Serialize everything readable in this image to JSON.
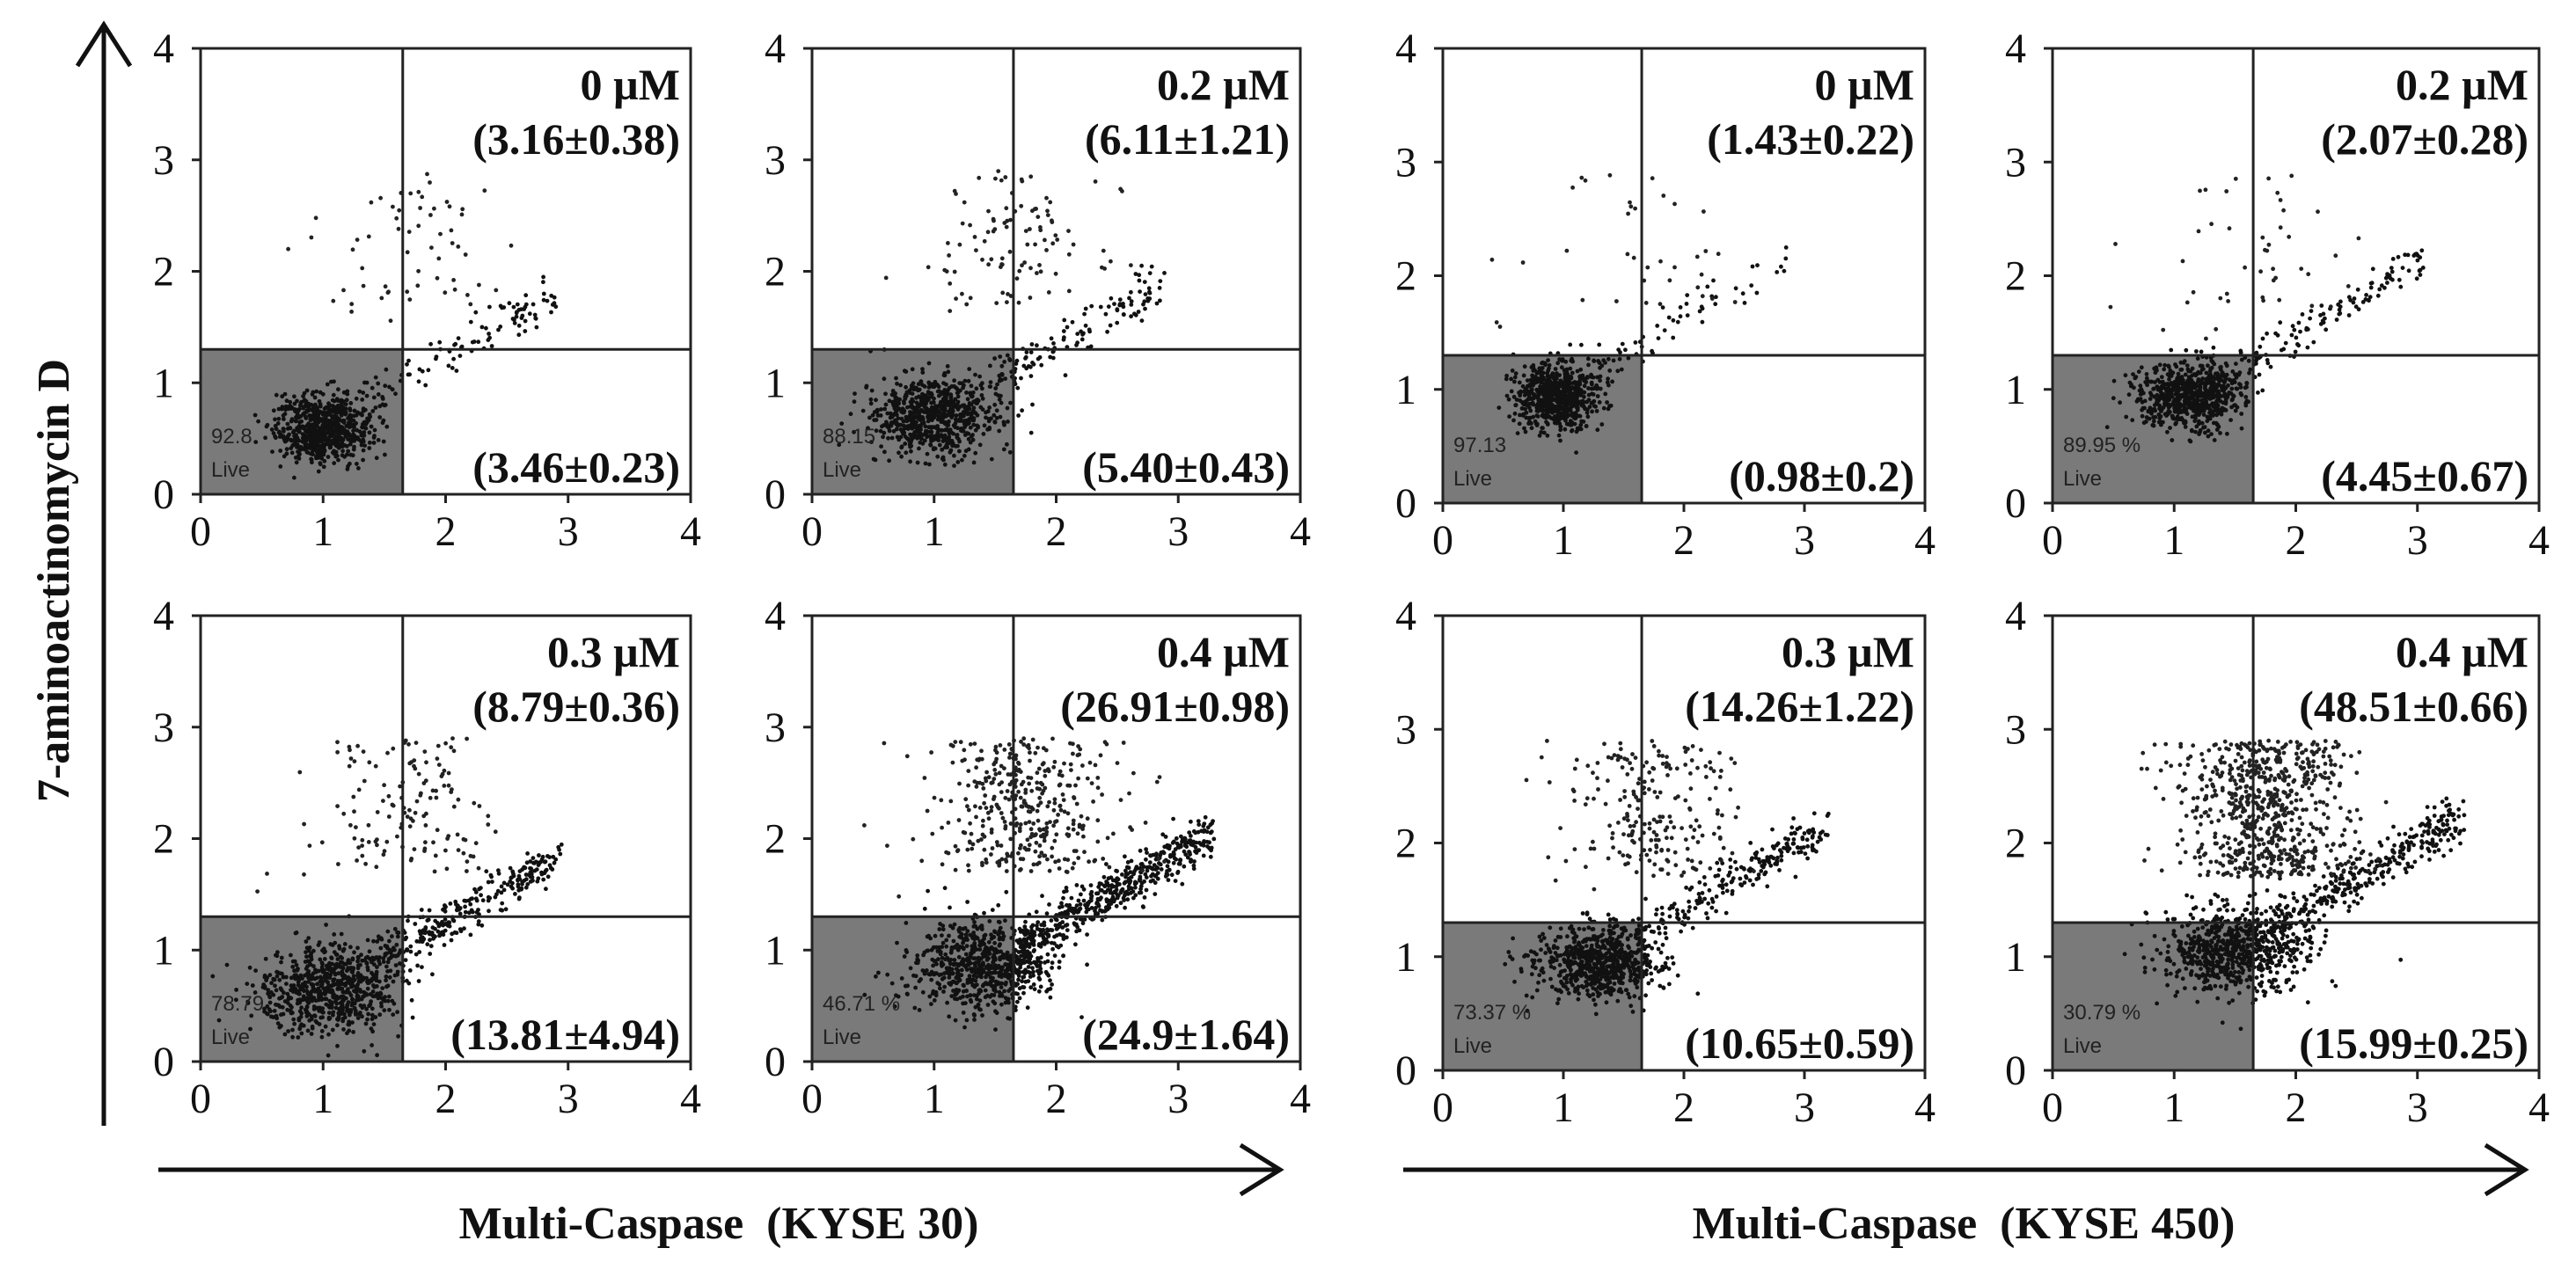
{
  "figure": {
    "y_axis_title": "7-aminoactinomycin D",
    "groups": [
      {
        "x_axis_title": "Multi-Caspase  (KYSE 30)"
      },
      {
        "x_axis_title": "Multi-Caspase  (KYSE 450)"
      }
    ]
  },
  "chart_data": [
    {
      "type": "scatter",
      "group": "Multi-Caspase  (KYSE 30)",
      "concentration": "0 µM",
      "late_apoptotic_label": "(3.16±0.38)",
      "early_apoptotic_label": "(3.46±0.23)",
      "live_percent_label": "92.8",
      "live_label": "Live",
      "xlim": [
        0,
        4
      ],
      "ylim": [
        0,
        4
      ],
      "xticks": [
        "0",
        "1",
        "2",
        "3",
        "4"
      ],
      "yticks": [
        "0",
        "1",
        "2",
        "3",
        "4"
      ],
      "gate": {
        "x": 1.65,
        "y": 1.3
      },
      "main_cluster": {
        "cx": 1.0,
        "cy": 0.6,
        "sx": 0.2,
        "sy": 0.15
      }
    },
    {
      "type": "scatter",
      "group": "Multi-Caspase  (KYSE 30)",
      "concentration": "0.2 µM",
      "late_apoptotic_label": "(6.11±1.21)",
      "early_apoptotic_label": "(5.40±0.43)",
      "live_percent_label": "88.15",
      "live_label": "Live",
      "xlim": [
        0,
        4
      ],
      "ylim": [
        0,
        4
      ],
      "xticks": [
        "0",
        "1",
        "2",
        "3",
        "4"
      ],
      "yticks": [
        "0",
        "1",
        "2",
        "3",
        "4"
      ],
      "gate": {
        "x": 1.65,
        "y": 1.3
      },
      "main_cluster": {
        "cx": 1.0,
        "cy": 0.7,
        "sx": 0.25,
        "sy": 0.18
      }
    },
    {
      "type": "scatter",
      "group": "Multi-Caspase  (KYSE 450)",
      "concentration": "0 µM",
      "late_apoptotic_label": "(1.43±0.22)",
      "early_apoptotic_label": "(0.98±0.2)",
      "live_percent_label": "97.13",
      "live_label": "Live",
      "xlim": [
        0,
        4
      ],
      "ylim": [
        0,
        4
      ],
      "xticks": [
        "0",
        "1",
        "2",
        "3",
        "4"
      ],
      "yticks": [
        "0",
        "1",
        "2",
        "3",
        "4"
      ],
      "gate": {
        "x": 1.65,
        "y": 1.3
      },
      "main_cluster": {
        "cx": 0.95,
        "cy": 0.95,
        "sx": 0.17,
        "sy": 0.15
      }
    },
    {
      "type": "scatter",
      "group": "Multi-Caspase  (KYSE 450)",
      "concentration": "0.2 µM",
      "late_apoptotic_label": "(2.07±0.28)",
      "early_apoptotic_label": "(4.45±0.67)",
      "live_percent_label": "89.95 %",
      "live_label": "Live",
      "xlim": [
        0,
        4
      ],
      "ylim": [
        0,
        4
      ],
      "xticks": [
        "0",
        "1",
        "2",
        "3",
        "4"
      ],
      "yticks": [
        "0",
        "1",
        "2",
        "3",
        "4"
      ],
      "gate": {
        "x": 1.65,
        "y": 1.3
      },
      "main_cluster": {
        "cx": 1.15,
        "cy": 0.95,
        "sx": 0.22,
        "sy": 0.15
      }
    },
    {
      "type": "scatter",
      "group": "Multi-Caspase  (KYSE 30)",
      "concentration": "0.3 µM",
      "late_apoptotic_label": "(8.79±0.36)",
      "early_apoptotic_label": "(13.81±4.94)",
      "live_percent_label": "78.79",
      "live_label": "Live",
      "xlim": [
        0,
        4
      ],
      "ylim": [
        0,
        4
      ],
      "xticks": [
        "0",
        "1",
        "2",
        "3",
        "4"
      ],
      "yticks": [
        "0",
        "1",
        "2",
        "3",
        "4"
      ],
      "gate": {
        "x": 1.65,
        "y": 1.3
      },
      "main_cluster": {
        "cx": 1.05,
        "cy": 0.65,
        "sx": 0.28,
        "sy": 0.2
      }
    },
    {
      "type": "scatter",
      "group": "Multi-Caspase  (KYSE 30)",
      "concentration": "0.4 µM",
      "late_apoptotic_label": "(26.91±0.98)",
      "early_apoptotic_label": "(24.9±1.64)",
      "live_percent_label": "46.71 %",
      "live_label": "Live",
      "xlim": [
        0,
        4
      ],
      "ylim": [
        0,
        4
      ],
      "xticks": [
        "0",
        "1",
        "2",
        "3",
        "4"
      ],
      "yticks": [
        "0",
        "1",
        "2",
        "3",
        "4"
      ],
      "gate": {
        "x": 1.65,
        "y": 1.3
      },
      "main_cluster": {
        "cx": 1.4,
        "cy": 0.85,
        "sx": 0.3,
        "sy": 0.2
      }
    },
    {
      "type": "scatter",
      "group": "Multi-Caspase  (KYSE 450)",
      "concentration": "0.3 µM",
      "late_apoptotic_label": "(14.26±1.22)",
      "early_apoptotic_label": "(10.65±0.59)",
      "live_percent_label": "73.37 %",
      "live_label": "Live",
      "xlim": [
        0,
        4
      ],
      "ylim": [
        0,
        4
      ],
      "xticks": [
        "0",
        "1",
        "2",
        "3",
        "4"
      ],
      "yticks": [
        "0",
        "1",
        "2",
        "3",
        "4"
      ],
      "gate": {
        "x": 1.65,
        "y": 1.3
      },
      "main_cluster": {
        "cx": 1.3,
        "cy": 0.95,
        "sx": 0.25,
        "sy": 0.16
      }
    },
    {
      "type": "scatter",
      "group": "Multi-Caspase  (KYSE 450)",
      "concentration": "0.4 µM",
      "late_apoptotic_label": "(48.51±0.66)",
      "early_apoptotic_label": "(15.99±0.25)",
      "live_percent_label": "30.79 %",
      "live_label": "Live",
      "xlim": [
        0,
        4
      ],
      "ylim": [
        0,
        4
      ],
      "xticks": [
        "0",
        "1",
        "2",
        "3",
        "4"
      ],
      "yticks": [
        "0",
        "1",
        "2",
        "3",
        "4"
      ],
      "gate": {
        "x": 1.65,
        "y": 1.3
      },
      "main_cluster": {
        "cx": 1.5,
        "cy": 1.05,
        "sx": 0.3,
        "sy": 0.18
      }
    }
  ]
}
